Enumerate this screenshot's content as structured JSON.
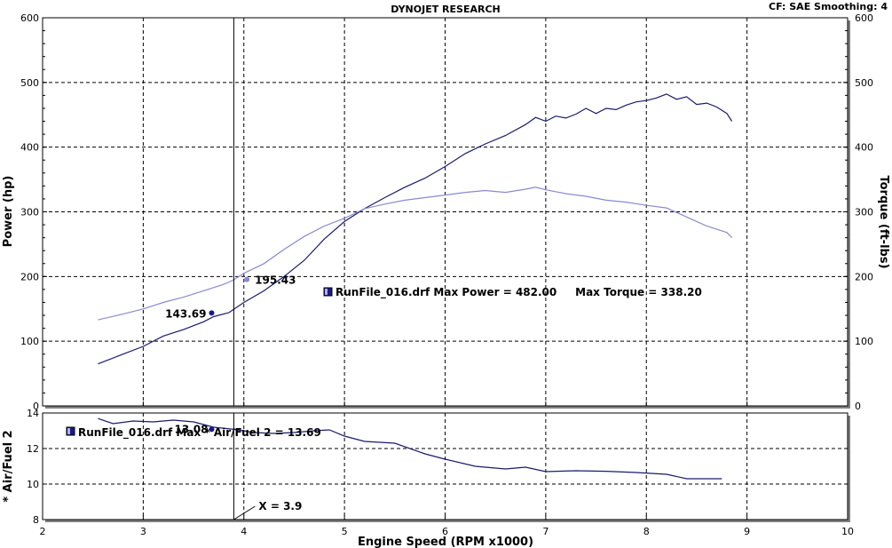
{
  "header": {
    "title": "DYNOJET RESEARCH",
    "settings": "CF: SAE  Smoothing: 4"
  },
  "colors": {
    "power_line": "#1a1a6e",
    "torque_line": "#8a8ad0",
    "afr_line": "#1a1a6e",
    "marker": "#1a1a8e",
    "cursor": "#000000"
  },
  "annotations": {
    "max_label": "RunFile_016.drf Max Power = 482.00     Max Torque = 338.20",
    "afr_label": "RunFile_016.drf Max * Air/Fuel 2 = 13.69",
    "cursor_label": "X = 3.9",
    "power_at_cursor": "143.69",
    "torque_at_cursor": "195.43",
    "afr_at_cursor": "13.08"
  },
  "chart_data": [
    {
      "type": "line",
      "title": "DYNOJET RESEARCH",
      "xlabel": "Engine Speed (RPM x1000)",
      "ylabel": "Power (hp)",
      "y2label": "Torque (ft-lbs)",
      "xlim": [
        2,
        10
      ],
      "ylim": [
        0,
        600
      ],
      "y2lim": [
        0,
        600
      ],
      "xticks": [
        "2",
        "3",
        "4",
        "5",
        "6",
        "7",
        "8",
        "9",
        "10"
      ],
      "yticks": [
        "0",
        "100",
        "200",
        "300",
        "400",
        "500",
        "600"
      ],
      "y2ticks": [
        "0",
        "100",
        "200",
        "300",
        "400",
        "500",
        "600"
      ],
      "grid": true,
      "cursor_x": 3.9,
      "series": [
        {
          "key": "power",
          "axis": "left",
          "x": [
            2.55,
            2.8,
            3.0,
            3.2,
            3.4,
            3.6,
            3.7,
            3.85,
            4.0,
            4.2,
            4.4,
            4.6,
            4.8,
            5.0,
            5.2,
            5.4,
            5.6,
            5.8,
            6.0,
            6.2,
            6.4,
            6.6,
            6.8,
            6.9,
            7.0,
            7.1,
            7.2,
            7.3,
            7.4,
            7.5,
            7.6,
            7.7,
            7.8,
            7.9,
            8.0,
            8.1,
            8.2,
            8.3,
            8.4,
            8.5,
            8.6,
            8.7,
            8.8,
            8.85
          ],
          "y": [
            65,
            80,
            92,
            108,
            118,
            130,
            138,
            144,
            160,
            178,
            200,
            225,
            258,
            285,
            305,
            322,
            338,
            352,
            370,
            390,
            405,
            418,
            435,
            446,
            440,
            448,
            445,
            451,
            460,
            452,
            460,
            458,
            465,
            470,
            472,
            476,
            482,
            474,
            478,
            466,
            468,
            462,
            452,
            440
          ]
        },
        {
          "key": "torque",
          "axis": "right",
          "x": [
            2.55,
            2.8,
            3.0,
            3.2,
            3.4,
            3.6,
            3.8,
            3.9,
            4.0,
            4.2,
            4.4,
            4.6,
            4.8,
            5.0,
            5.2,
            5.4,
            5.6,
            5.8,
            6.0,
            6.2,
            6.4,
            6.6,
            6.8,
            6.9,
            7.0,
            7.2,
            7.4,
            7.6,
            7.8,
            8.0,
            8.2,
            8.4,
            8.6,
            8.8,
            8.85
          ],
          "y": [
            133,
            142,
            150,
            160,
            168,
            178,
            188,
            195,
            205,
            220,
            242,
            262,
            278,
            290,
            305,
            312,
            318,
            322,
            326,
            330,
            333,
            330,
            335,
            338,
            334,
            328,
            324,
            318,
            315,
            310,
            306,
            292,
            278,
            268,
            260
          ]
        }
      ]
    },
    {
      "type": "line",
      "xlabel": "Engine Speed (RPM x1000)",
      "ylabel": "* Air/Fuel 2",
      "xlim": [
        2,
        10
      ],
      "ylim": [
        8,
        14
      ],
      "xticks": [
        "2",
        "3",
        "4",
        "5",
        "6",
        "7",
        "8",
        "9",
        "10"
      ],
      "yticks": [
        "8",
        "10",
        "12",
        "14"
      ],
      "grid": true,
      "cursor_x": 3.9,
      "series": [
        {
          "key": "afr",
          "axis": "left",
          "x": [
            2.55,
            2.7,
            2.9,
            3.1,
            3.3,
            3.5,
            3.7,
            3.9,
            4.1,
            4.3,
            4.5,
            4.7,
            4.85,
            5.0,
            5.2,
            5.5,
            5.8,
            6.0,
            6.3,
            6.6,
            6.8,
            7.0,
            7.3,
            7.6,
            7.9,
            8.2,
            8.4,
            8.6,
            8.75
          ],
          "y": [
            13.69,
            13.4,
            13.55,
            13.5,
            13.6,
            13.5,
            13.2,
            13.08,
            12.9,
            12.85,
            12.9,
            13.0,
            13.05,
            12.7,
            12.4,
            12.3,
            11.7,
            11.4,
            11.0,
            10.85,
            10.95,
            10.7,
            10.75,
            10.72,
            10.65,
            10.55,
            10.3,
            10.3,
            10.3
          ]
        }
      ]
    }
  ]
}
